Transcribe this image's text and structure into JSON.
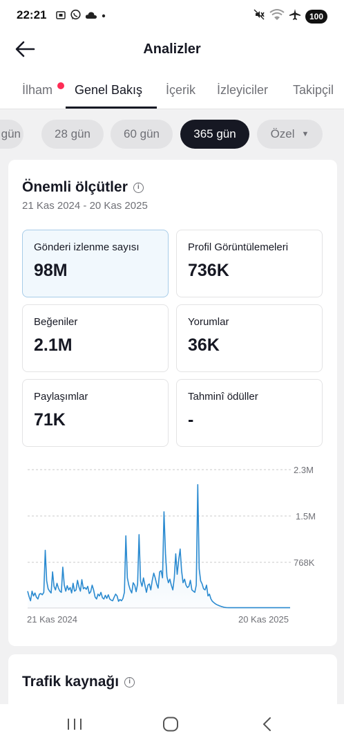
{
  "status_bar": {
    "time": "22:21",
    "left_icons": [
      "screenshot-icon",
      "whatsapp-icon",
      "cloud-icon",
      "dot-icon"
    ],
    "right_icons": [
      "mute-icon",
      "wifi-icon",
      "airplane-icon"
    ],
    "battery": "100"
  },
  "header": {
    "title": "Analizler",
    "back_icon": "arrow-left-icon"
  },
  "tabs": [
    {
      "label": "İlham",
      "badge": true
    },
    {
      "label": "Genel Bakış",
      "active": true
    },
    {
      "label": "İçerik"
    },
    {
      "label": "İzleyiciler"
    },
    {
      "label": "Takipçil"
    }
  ],
  "periods": [
    {
      "label": "gün"
    },
    {
      "label": "28 gün"
    },
    {
      "label": "60 gün"
    },
    {
      "label": "365 gün",
      "active": true
    },
    {
      "label": "Özel",
      "dropdown": true
    }
  ],
  "key_metrics": {
    "title": "Önemli ölçütler",
    "date_range": "21 Kas 2024 - 20 Kas 2025",
    "items": [
      {
        "label": "Gönderi izlenme sayısı",
        "value": "98M",
        "selected": true
      },
      {
        "label": "Profil Görüntülemeleri",
        "value": "736K"
      },
      {
        "label": "Beğeniler",
        "value": "2.1M"
      },
      {
        "label": "Yorumlar",
        "value": "36K"
      },
      {
        "label": "Paylaşımlar",
        "value": "71K"
      },
      {
        "label": "Tahminî ödüller",
        "value": "-"
      }
    ]
  },
  "chart_data": {
    "type": "area",
    "series_name": "Gönderi izlenme sayısı",
    "y_ticks": [
      "2.3M",
      "1.5M",
      "768K"
    ],
    "y_tick_values": [
      2300000,
      1500000,
      768000
    ],
    "ylim": [
      0,
      2300000
    ],
    "x_labels": [
      "21 Kas 2024",
      "20 Kas 2025"
    ],
    "grid": true,
    "line_color": "#2a8ad0",
    "values": [
      280000,
      190000,
      120000,
      280000,
      200000,
      250000,
      180000,
      150000,
      230000,
      240000,
      220000,
      260000,
      960000,
      450000,
      320000,
      280000,
      250000,
      600000,
      360000,
      300000,
      410000,
      330000,
      280000,
      260000,
      680000,
      380000,
      280000,
      370000,
      300000,
      340000,
      250000,
      410000,
      280000,
      300000,
      460000,
      350000,
      280000,
      470000,
      320000,
      340000,
      310000,
      360000,
      240000,
      270000,
      380000,
      300000,
      180000,
      150000,
      230000,
      200000,
      260000,
      170000,
      150000,
      210000,
      160000,
      220000,
      150000,
      130000,
      120000,
      180000,
      230000,
      200000,
      110000,
      140000,
      120000,
      160000,
      260000,
      1200000,
      500000,
      380000,
      300000,
      250000,
      420000,
      380000,
      270000,
      400000,
      1220000,
      450000,
      360000,
      500000,
      380000,
      260000,
      380000,
      400000,
      300000,
      460000,
      580000,
      500000,
      400000,
      330000,
      600000,
      620000,
      500000,
      1600000,
      900000,
      520000,
      420000,
      480000,
      380000,
      300000,
      500000,
      900000,
      560000,
      800000,
      980000,
      620000,
      420000,
      480000,
      380000,
      340000,
      360000,
      460000,
      300000,
      280000,
      260000,
      380000,
      2050000,
      650000,
      450000,
      400000,
      320000,
      300000,
      380000,
      200000,
      230000,
      150000,
      110000,
      90000,
      70000,
      55000,
      45000,
      35000,
      25000,
      18000,
      12000,
      8000,
      6000,
      5000,
      5000,
      5000,
      5000,
      5000,
      5000,
      5000,
      5000,
      5000,
      5000,
      5000,
      5000,
      5000,
      5000,
      5000,
      5000,
      5000,
      5000,
      5000,
      5000,
      5000,
      5000,
      5000,
      5000,
      5000,
      5000,
      5000,
      5000,
      5000,
      5000,
      5000,
      5000,
      5000,
      5000,
      5000,
      5000,
      5000,
      5000,
      5000,
      5000,
      5000,
      5000,
      5000
    ]
  },
  "traffic": {
    "title": "Trafik kaynağı"
  },
  "nav": [
    "recents-icon",
    "home-icon",
    "back-icon"
  ]
}
